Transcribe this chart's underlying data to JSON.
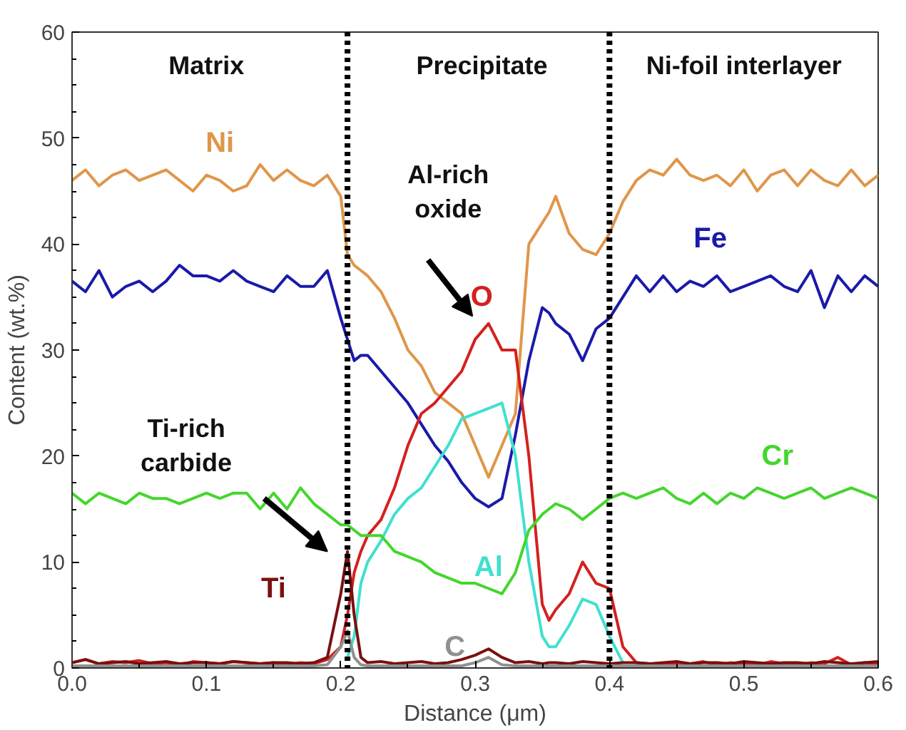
{
  "chart_data": {
    "type": "line",
    "xlabel": "Distance (μm)",
    "ylabel": "Content (wt.%)",
    "x": [
      0,
      0.01,
      0.02,
      0.03,
      0.04,
      0.05,
      0.06,
      0.07,
      0.08,
      0.09,
      0.1,
      0.11,
      0.12,
      0.13,
      0.14,
      0.15,
      0.16,
      0.17,
      0.18,
      0.19,
      0.2,
      0.205,
      0.21,
      0.215,
      0.22,
      0.23,
      0.24,
      0.25,
      0.26,
      0.27,
      0.28,
      0.29,
      0.3,
      0.31,
      0.32,
      0.33,
      0.34,
      0.35,
      0.355,
      0.36,
      0.37,
      0.38,
      0.39,
      0.4,
      0.41,
      0.42,
      0.43,
      0.44,
      0.45,
      0.46,
      0.47,
      0.48,
      0.49,
      0.5,
      0.51,
      0.52,
      0.53,
      0.54,
      0.55,
      0.56,
      0.57,
      0.58,
      0.59,
      0.6
    ],
    "series": [
      {
        "name": "Ni",
        "color": "#e0964a",
        "values": [
          46,
          47,
          45.5,
          46.5,
          47,
          46,
          46.5,
          47,
          46,
          45,
          46.5,
          46,
          45,
          45.5,
          47.5,
          46,
          47,
          46,
          45.5,
          46.5,
          44.5,
          39,
          38,
          37.5,
          37,
          35.5,
          33,
          30,
          28.5,
          26,
          25,
          24,
          21,
          18,
          21,
          24,
          40,
          42,
          43,
          44.5,
          41,
          39.5,
          39,
          41,
          44,
          46,
          47,
          46.5,
          48,
          46.5,
          46,
          46.5,
          45.5,
          47,
          45,
          46.5,
          47,
          45.5,
          47,
          46,
          45.5,
          47,
          45.5,
          46.5
        ]
      },
      {
        "name": "Fe",
        "color": "#1a1aa8",
        "values": [
          36.5,
          35.5,
          37.5,
          35,
          36,
          36.5,
          35.5,
          36.5,
          38,
          37,
          37,
          36.5,
          37.5,
          36.5,
          36,
          35.5,
          37,
          36,
          36,
          37.5,
          33,
          31,
          29,
          29.5,
          29.5,
          28,
          26.5,
          25,
          23,
          21,
          19.5,
          17.5,
          16,
          15.2,
          16,
          22,
          29,
          34,
          33.5,
          32.5,
          31.5,
          29,
          32,
          33,
          35,
          37,
          35.5,
          37,
          35.5,
          36.5,
          36,
          37,
          35.5,
          36,
          36.5,
          37,
          36,
          35.5,
          37.5,
          34,
          37,
          35.5,
          37,
          36
        ]
      },
      {
        "name": "O",
        "color": "#d42020",
        "values": [
          0.5,
          0.8,
          0.4,
          0.6,
          0.5,
          0.7,
          0.4,
          0.5,
          0.3,
          0.6,
          0.5,
          0.4,
          0.6,
          0.5,
          0.4,
          0.5,
          0.3,
          0.5,
          0.4,
          0.8,
          2,
          5,
          9,
          11,
          12.5,
          14,
          17,
          21,
          24,
          25,
          26.5,
          28,
          31,
          32.5,
          30,
          30,
          20,
          6,
          4.5,
          5.5,
          7,
          10,
          8,
          7.5,
          2,
          0.5,
          0.4,
          0.3,
          0.5,
          0.4,
          0.6,
          0.3,
          0.5,
          0.4,
          0.3,
          0.6,
          0.4,
          0.3,
          0.5,
          0.4,
          1,
          0.3,
          0.5,
          0.4
        ]
      },
      {
        "name": "Al",
        "color": "#40e0d0",
        "x": [
          0.205,
          0.21,
          0.215,
          0.22,
          0.23,
          0.24,
          0.25,
          0.26,
          0.27,
          0.28,
          0.29,
          0.3,
          0.31,
          0.32,
          0.33,
          0.34,
          0.35,
          0.355,
          0.36,
          0.37,
          0.38,
          0.39,
          0.4,
          0.41
        ],
        "values": [
          1,
          3,
          8,
          10,
          12,
          14.5,
          16,
          17,
          19,
          21,
          23.5,
          24,
          24.5,
          25,
          20,
          10,
          3,
          2,
          2,
          4,
          6.5,
          6,
          3,
          0.5
        ]
      },
      {
        "name": "Cr",
        "color": "#44d62c",
        "values": [
          16.5,
          15.5,
          16.5,
          16,
          15.5,
          16.5,
          16,
          16,
          15.5,
          16,
          16.5,
          16,
          16.5,
          16.5,
          15,
          16.5,
          15,
          17,
          15.5,
          14.5,
          13.5,
          13.5,
          13,
          12.5,
          12.5,
          12.5,
          11,
          10.5,
          10,
          9,
          8.5,
          8,
          8,
          7.5,
          7,
          9,
          13,
          14.5,
          15,
          15.5,
          15,
          14,
          15,
          16,
          16.5,
          16,
          16.5,
          17,
          16,
          15.5,
          16.5,
          15.5,
          16.5,
          16,
          17,
          16.5,
          16,
          16.5,
          17,
          16,
          16.5,
          17,
          16.5,
          16
        ]
      },
      {
        "name": "Ti",
        "color": "#7a1010",
        "values": [
          0.5,
          0.8,
          0.4,
          0.5,
          0.6,
          0.4,
          0.5,
          0.6,
          0.4,
          0.5,
          0.5,
          0.4,
          0.6,
          0.5,
          0.4,
          0.5,
          0.5,
          0.4,
          0.5,
          1,
          7,
          11,
          5,
          1,
          0.5,
          0.6,
          0.4,
          0.5,
          0.6,
          0.4,
          0.5,
          0.8,
          1.2,
          1.8,
          1,
          0.5,
          0.6,
          0.4,
          0.5,
          0.5,
          0.4,
          0.6,
          0.5,
          0.4,
          0.5,
          0.5,
          0.4,
          0.5,
          0.6,
          0.4,
          0.5,
          0.5,
          0.4,
          0.6,
          0.5,
          0.4,
          0.5,
          0.5,
          0.4,
          0.6,
          0.5,
          0.4,
          0.5,
          0.6
        ]
      },
      {
        "name": "C",
        "color": "#909090",
        "values": [
          0.2,
          0.2,
          0.2,
          0.2,
          0.2,
          0.2,
          0.2,
          0.2,
          0.2,
          0.2,
          0.2,
          0.2,
          0.2,
          0.2,
          0.2,
          0.2,
          0.2,
          0.2,
          0.2,
          0.3,
          2,
          3.5,
          1,
          0.3,
          0.2,
          0.2,
          0.2,
          0.2,
          0.2,
          0.2,
          0.2,
          0.2,
          0.5,
          1,
          0.3,
          0.2,
          0.2,
          0.2,
          0.2,
          0.2,
          0.2,
          0.2,
          0.2,
          0.2,
          0.2,
          0.2,
          0.2,
          0.2,
          0.2,
          0.2,
          0.2,
          0.2,
          0.2,
          0.2,
          0.2,
          0.2,
          0.2,
          0.2,
          0.2,
          0.2,
          0.2,
          0.2,
          0.2,
          0.2
        ]
      }
    ],
    "xlim": [
      0,
      0.6
    ],
    "ylim": [
      0,
      60
    ],
    "xticks": [
      {
        "value": 0,
        "label": "0.0"
      },
      {
        "value": 0.1,
        "label": "0.1"
      },
      {
        "value": 0.2,
        "label": "0.2"
      },
      {
        "value": 0.3,
        "label": "0.3"
      },
      {
        "value": 0.4,
        "label": "0.4"
      },
      {
        "value": 0.5,
        "label": "0.5"
      },
      {
        "value": 0.6,
        "label": "0.6"
      }
    ],
    "yticks": [
      0,
      10,
      20,
      30,
      40,
      50,
      60
    ],
    "ref_lines": [
      {
        "axis": "x",
        "value": 0.205,
        "color": "#000000",
        "line_style": "dotted"
      },
      {
        "axis": "x",
        "value": 0.4,
        "color": "#000000",
        "line_style": "dotted"
      }
    ],
    "annotations": [
      "Matrix",
      "Precipitate",
      "Ni-foil interlayer",
      "Al-rich\noxide",
      "Ti-rich\ncarbide"
    ],
    "grid": false,
    "marker": "none",
    "line_style": "solid"
  }
}
